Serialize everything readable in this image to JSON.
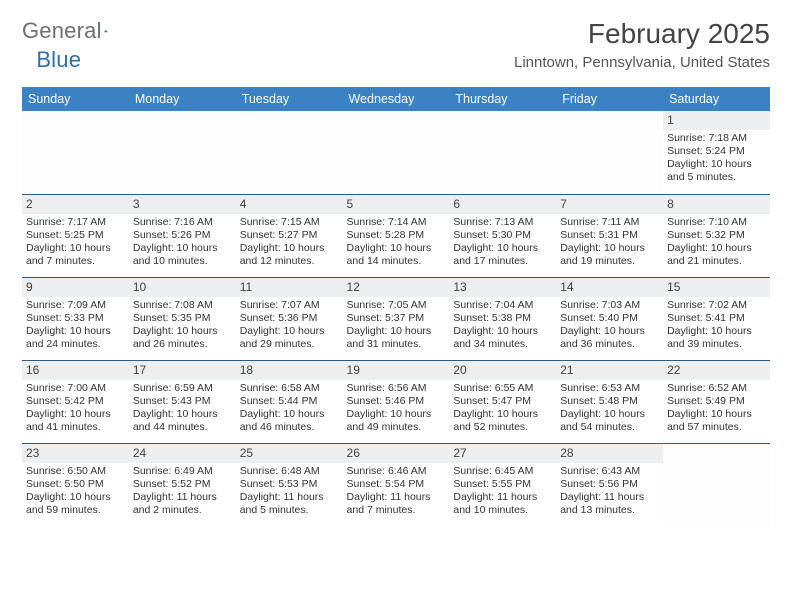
{
  "brand": {
    "word1": "General",
    "word2": "Blue",
    "logo_color": "#2f6ea9",
    "text_color": "#6f6f6f"
  },
  "title": "February 2025",
  "location": "Linntown, Pennsylvania, United States",
  "colors": {
    "header_bg": "#3a82c4",
    "row_border": "#2d5b85",
    "daynum_bg": "#eceef0"
  },
  "weekdays": [
    "Sunday",
    "Monday",
    "Tuesday",
    "Wednesday",
    "Thursday",
    "Friday",
    "Saturday"
  ],
  "weeks": [
    [
      {
        "empty": true
      },
      {
        "empty": true
      },
      {
        "empty": true
      },
      {
        "empty": true
      },
      {
        "empty": true
      },
      {
        "empty": true
      },
      {
        "n": "1",
        "sunrise": "Sunrise: 7:18 AM",
        "sunset": "Sunset: 5:24 PM",
        "d1": "Daylight: 10 hours",
        "d2": "and 5 minutes."
      }
    ],
    [
      {
        "n": "2",
        "sunrise": "Sunrise: 7:17 AM",
        "sunset": "Sunset: 5:25 PM",
        "d1": "Daylight: 10 hours",
        "d2": "and 7 minutes."
      },
      {
        "n": "3",
        "sunrise": "Sunrise: 7:16 AM",
        "sunset": "Sunset: 5:26 PM",
        "d1": "Daylight: 10 hours",
        "d2": "and 10 minutes."
      },
      {
        "n": "4",
        "sunrise": "Sunrise: 7:15 AM",
        "sunset": "Sunset: 5:27 PM",
        "d1": "Daylight: 10 hours",
        "d2": "and 12 minutes."
      },
      {
        "n": "5",
        "sunrise": "Sunrise: 7:14 AM",
        "sunset": "Sunset: 5:28 PM",
        "d1": "Daylight: 10 hours",
        "d2": "and 14 minutes."
      },
      {
        "n": "6",
        "sunrise": "Sunrise: 7:13 AM",
        "sunset": "Sunset: 5:30 PM",
        "d1": "Daylight: 10 hours",
        "d2": "and 17 minutes."
      },
      {
        "n": "7",
        "sunrise": "Sunrise: 7:11 AM",
        "sunset": "Sunset: 5:31 PM",
        "d1": "Daylight: 10 hours",
        "d2": "and 19 minutes."
      },
      {
        "n": "8",
        "sunrise": "Sunrise: 7:10 AM",
        "sunset": "Sunset: 5:32 PM",
        "d1": "Daylight: 10 hours",
        "d2": "and 21 minutes."
      }
    ],
    [
      {
        "n": "9",
        "sunrise": "Sunrise: 7:09 AM",
        "sunset": "Sunset: 5:33 PM",
        "d1": "Daylight: 10 hours",
        "d2": "and 24 minutes."
      },
      {
        "n": "10",
        "sunrise": "Sunrise: 7:08 AM",
        "sunset": "Sunset: 5:35 PM",
        "d1": "Daylight: 10 hours",
        "d2": "and 26 minutes."
      },
      {
        "n": "11",
        "sunrise": "Sunrise: 7:07 AM",
        "sunset": "Sunset: 5:36 PM",
        "d1": "Daylight: 10 hours",
        "d2": "and 29 minutes."
      },
      {
        "n": "12",
        "sunrise": "Sunrise: 7:05 AM",
        "sunset": "Sunset: 5:37 PM",
        "d1": "Daylight: 10 hours",
        "d2": "and 31 minutes."
      },
      {
        "n": "13",
        "sunrise": "Sunrise: 7:04 AM",
        "sunset": "Sunset: 5:38 PM",
        "d1": "Daylight: 10 hours",
        "d2": "and 34 minutes."
      },
      {
        "n": "14",
        "sunrise": "Sunrise: 7:03 AM",
        "sunset": "Sunset: 5:40 PM",
        "d1": "Daylight: 10 hours",
        "d2": "and 36 minutes."
      },
      {
        "n": "15",
        "sunrise": "Sunrise: 7:02 AM",
        "sunset": "Sunset: 5:41 PM",
        "d1": "Daylight: 10 hours",
        "d2": "and 39 minutes."
      }
    ],
    [
      {
        "n": "16",
        "sunrise": "Sunrise: 7:00 AM",
        "sunset": "Sunset: 5:42 PM",
        "d1": "Daylight: 10 hours",
        "d2": "and 41 minutes."
      },
      {
        "n": "17",
        "sunrise": "Sunrise: 6:59 AM",
        "sunset": "Sunset: 5:43 PM",
        "d1": "Daylight: 10 hours",
        "d2": "and 44 minutes."
      },
      {
        "n": "18",
        "sunrise": "Sunrise: 6:58 AM",
        "sunset": "Sunset: 5:44 PM",
        "d1": "Daylight: 10 hours",
        "d2": "and 46 minutes."
      },
      {
        "n": "19",
        "sunrise": "Sunrise: 6:56 AM",
        "sunset": "Sunset: 5:46 PM",
        "d1": "Daylight: 10 hours",
        "d2": "and 49 minutes."
      },
      {
        "n": "20",
        "sunrise": "Sunrise: 6:55 AM",
        "sunset": "Sunset: 5:47 PM",
        "d1": "Daylight: 10 hours",
        "d2": "and 52 minutes."
      },
      {
        "n": "21",
        "sunrise": "Sunrise: 6:53 AM",
        "sunset": "Sunset: 5:48 PM",
        "d1": "Daylight: 10 hours",
        "d2": "and 54 minutes."
      },
      {
        "n": "22",
        "sunrise": "Sunrise: 6:52 AM",
        "sunset": "Sunset: 5:49 PM",
        "d1": "Daylight: 10 hours",
        "d2": "and 57 minutes."
      }
    ],
    [
      {
        "n": "23",
        "sunrise": "Sunrise: 6:50 AM",
        "sunset": "Sunset: 5:50 PM",
        "d1": "Daylight: 10 hours",
        "d2": "and 59 minutes."
      },
      {
        "n": "24",
        "sunrise": "Sunrise: 6:49 AM",
        "sunset": "Sunset: 5:52 PM",
        "d1": "Daylight: 11 hours",
        "d2": "and 2 minutes."
      },
      {
        "n": "25",
        "sunrise": "Sunrise: 6:48 AM",
        "sunset": "Sunset: 5:53 PM",
        "d1": "Daylight: 11 hours",
        "d2": "and 5 minutes."
      },
      {
        "n": "26",
        "sunrise": "Sunrise: 6:46 AM",
        "sunset": "Sunset: 5:54 PM",
        "d1": "Daylight: 11 hours",
        "d2": "and 7 minutes."
      },
      {
        "n": "27",
        "sunrise": "Sunrise: 6:45 AM",
        "sunset": "Sunset: 5:55 PM",
        "d1": "Daylight: 11 hours",
        "d2": "and 10 minutes."
      },
      {
        "n": "28",
        "sunrise": "Sunrise: 6:43 AM",
        "sunset": "Sunset: 5:56 PM",
        "d1": "Daylight: 11 hours",
        "d2": "and 13 minutes."
      },
      {
        "empty": true
      }
    ]
  ]
}
